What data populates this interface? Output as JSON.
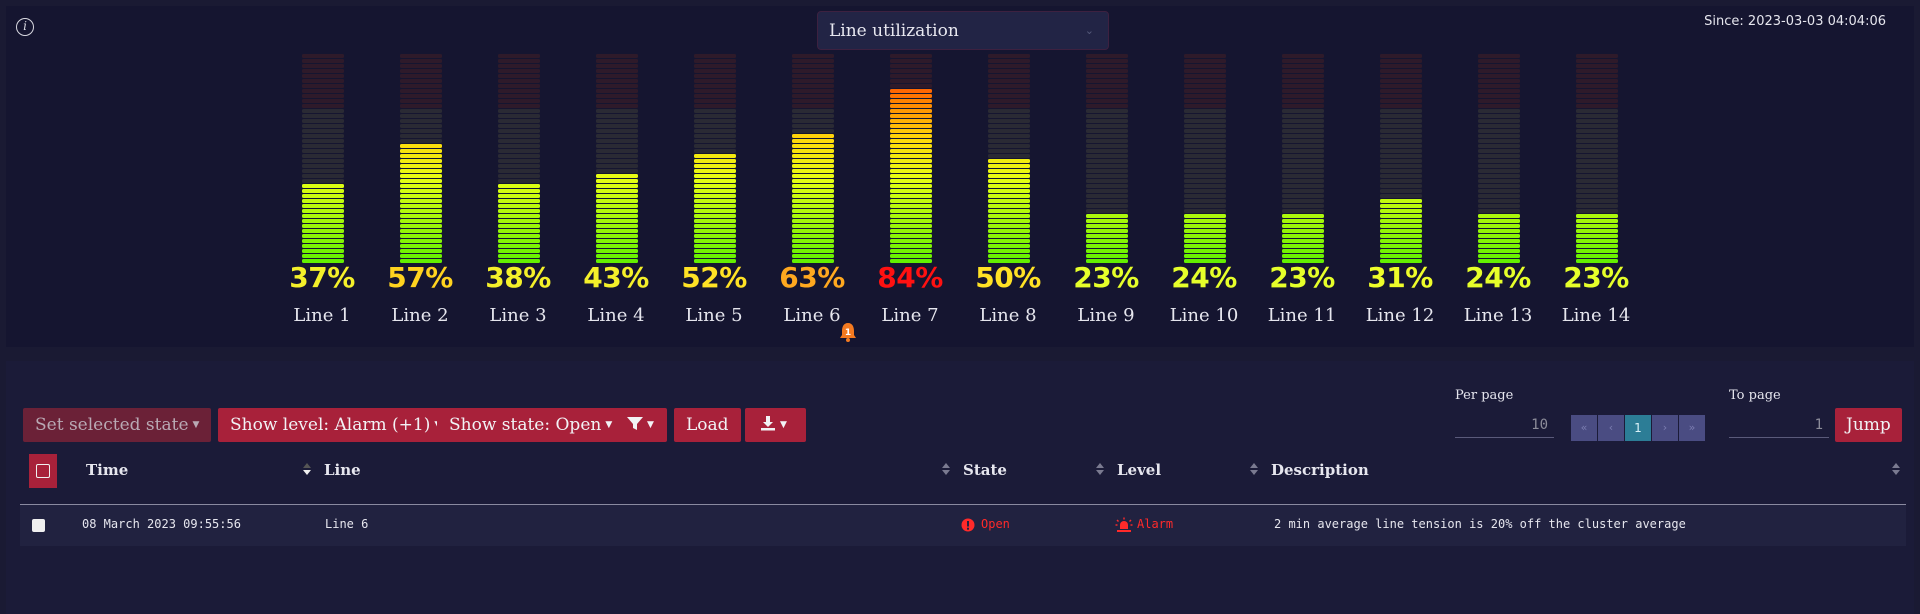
{
  "header": {
    "metric_select": "Line utilization",
    "since": "Since: 2023-03-03 04:04:06"
  },
  "meters": [
    {
      "label": "Line 1",
      "pct_text": "37%",
      "value": 37,
      "color": "#f4f02a"
    },
    {
      "label": "Line 2",
      "pct_text": "57%",
      "value": 57,
      "color": "#ffd31f"
    },
    {
      "label": "Line 3",
      "pct_text": "38%",
      "value": 38,
      "color": "#f4f02a"
    },
    {
      "label": "Line 4",
      "pct_text": "43%",
      "value": 43,
      "color": "#f4f02a"
    },
    {
      "label": "Line 5",
      "pct_text": "52%",
      "value": 52,
      "color": "#ffe225"
    },
    {
      "label": "Line 6",
      "pct_text": "63%",
      "value": 63,
      "color": "#ffa81f"
    },
    {
      "label": "Line 7",
      "pct_text": "84%",
      "value": 84,
      "color": "#ff1111"
    },
    {
      "label": "Line 8",
      "pct_text": "50%",
      "value": 50,
      "color": "#ffe225"
    },
    {
      "label": "Line 9",
      "pct_text": "23%",
      "value": 23,
      "color": "#e6ff2a"
    },
    {
      "label": "Line 10",
      "pct_text": "24%",
      "value": 24,
      "color": "#e6ff2a"
    },
    {
      "label": "Line 11",
      "pct_text": "23%",
      "value": 23,
      "color": "#e6ff2a"
    },
    {
      "label": "Line 12",
      "pct_text": "31%",
      "value": 31,
      "color": "#eefc2a"
    },
    {
      "label": "Line 13",
      "pct_text": "24%",
      "value": 24,
      "color": "#e6ff2a"
    },
    {
      "label": "Line 14",
      "pct_text": "23%",
      "value": 23,
      "color": "#e6ff2a"
    }
  ],
  "alert": {
    "line": "Line 6",
    "count": "1"
  },
  "toolbar": {
    "set_state": "Set selected state",
    "show_level": "Show level: Alarm (+1)",
    "show_state": "Show state: Open",
    "load": "Load"
  },
  "pagination": {
    "per_page_label": "Per page",
    "per_page_value": "10",
    "first": "«",
    "prev": "‹",
    "current_page": "1",
    "next": "›",
    "last": "»",
    "to_page_label": "To page",
    "to_page_value": "1",
    "jump": "Jump"
  },
  "table": {
    "columns": [
      "Time",
      "Line",
      "State",
      "Level",
      "Description"
    ],
    "rows": [
      {
        "time": "08 March 2023 09:55:56",
        "line": "Line 6",
        "state": "Open",
        "level": "Alarm",
        "description": "2 min average line tension is 20% off the cluster average"
      }
    ]
  },
  "colors": {
    "accent": "#a8213a",
    "alarm": "#ff2a2a",
    "page_active": "#2c7d96"
  }
}
